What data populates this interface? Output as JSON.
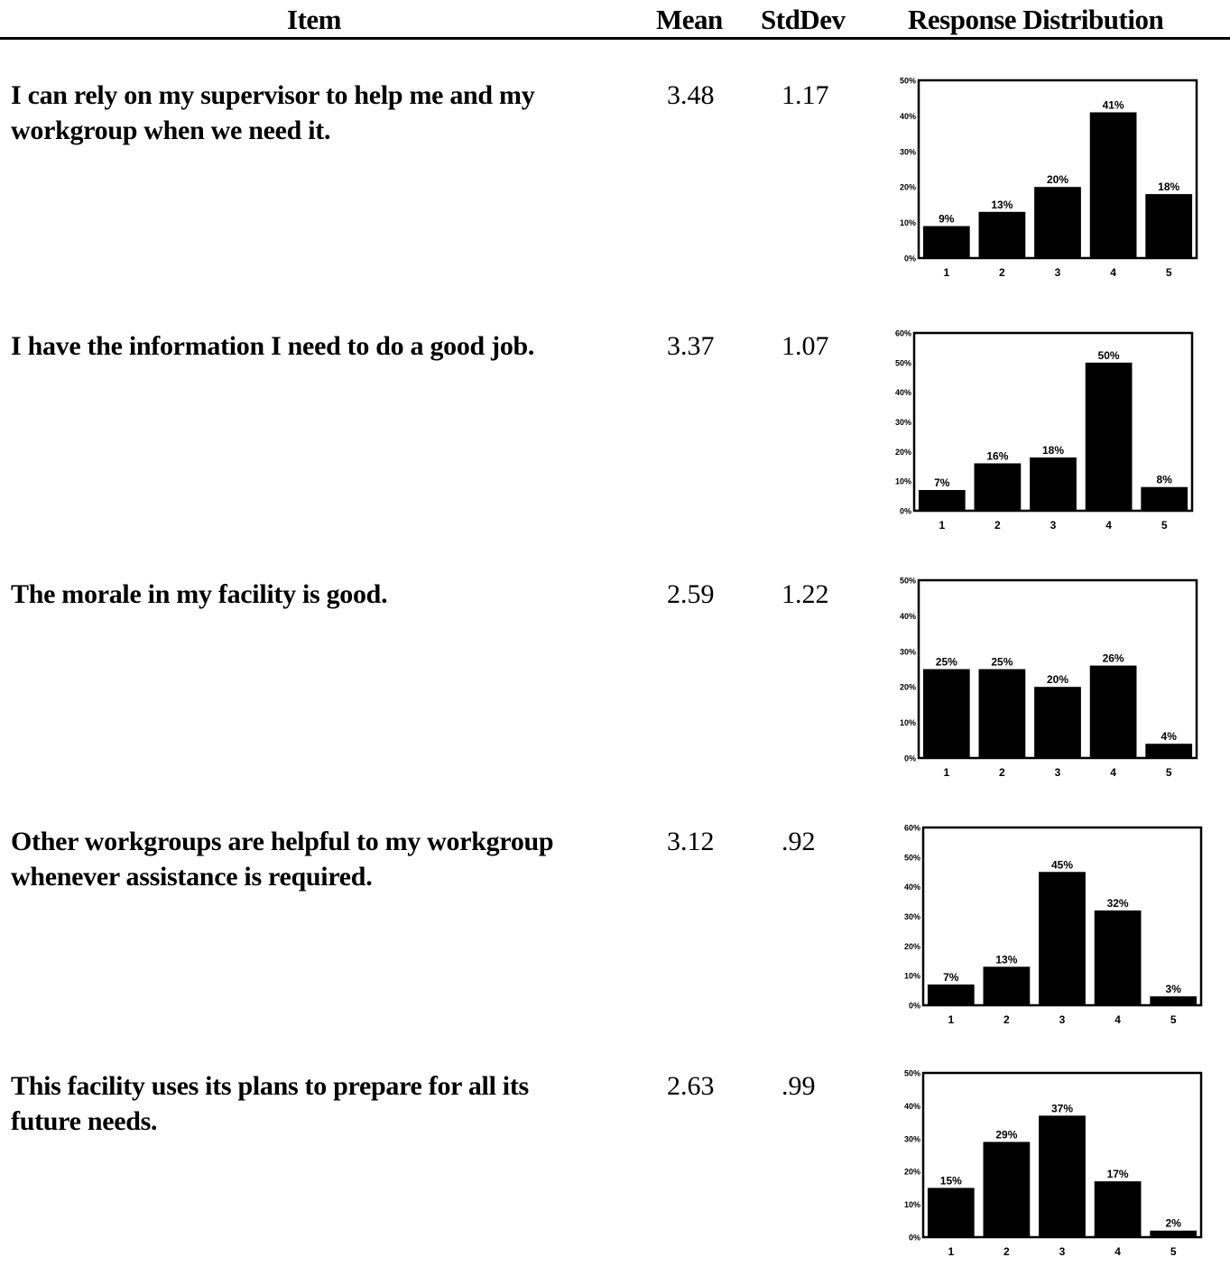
{
  "header": {
    "item": "Item",
    "mean": "Mean",
    "stddev": "StdDev",
    "distribution": "Response Distribution"
  },
  "rows": [
    {
      "question": "I can rely on my supervisor to help me and my workgroup when we need it.",
      "mean": "3.48",
      "stddev": "1.17"
    },
    {
      "question": "I have the information I need to do a good job.",
      "mean": "3.37",
      "stddev": "1.07"
    },
    {
      "question": "The morale in my facility is good.",
      "mean": "2.59",
      "stddev": "1.22"
    },
    {
      "question": "Other workgroups are helpful to my workgroup whenever assistance is required.",
      "mean": "3.12",
      "stddev": ".92"
    },
    {
      "question": "This facility uses its plans to prepare for all its future needs.",
      "mean": "2.63",
      "stddev": ".99"
    }
  ],
  "chart_data": [
    {
      "type": "bar",
      "categories": [
        "1",
        "2",
        "3",
        "4",
        "5"
      ],
      "values": [
        9,
        13,
        20,
        41,
        18
      ],
      "value_labels": [
        "9%",
        "13%",
        "20%",
        "41%",
        "18%"
      ],
      "ylim": [
        0,
        50
      ],
      "yticks": [
        "0%",
        "10%",
        "20%",
        "30%",
        "40%",
        "50%"
      ],
      "grid": false
    },
    {
      "type": "bar",
      "categories": [
        "1",
        "2",
        "3",
        "4",
        "5"
      ],
      "values": [
        7,
        16,
        18,
        50,
        8
      ],
      "value_labels": [
        "7%",
        "16%",
        "18%",
        "50%",
        "8%"
      ],
      "ylim": [
        0,
        60
      ],
      "yticks": [
        "0%",
        "10%",
        "20%",
        "30%",
        "40%",
        "50%",
        "60%"
      ],
      "grid": false
    },
    {
      "type": "bar",
      "categories": [
        "1",
        "2",
        "3",
        "4",
        "5"
      ],
      "values": [
        25,
        25,
        20,
        26,
        4
      ],
      "value_labels": [
        "25%",
        "25%",
        "20%",
        "26%",
        "4%"
      ],
      "ylim": [
        0,
        50
      ],
      "yticks": [
        "0%",
        "10%",
        "20%",
        "30%",
        "40%",
        "50%"
      ],
      "grid": false
    },
    {
      "type": "bar",
      "categories": [
        "1",
        "2",
        "3",
        "4",
        "5"
      ],
      "values": [
        7,
        13,
        45,
        32,
        3
      ],
      "value_labels": [
        "7%",
        "13%",
        "45%",
        "32%",
        "3%"
      ],
      "ylim": [
        0,
        60
      ],
      "yticks": [
        "0%",
        "10%",
        "20%",
        "30%",
        "40%",
        "50%",
        "60%"
      ],
      "grid": false
    },
    {
      "type": "bar",
      "categories": [
        "1",
        "2",
        "3",
        "4",
        "5"
      ],
      "values": [
        15,
        29,
        37,
        17,
        2
      ],
      "value_labels": [
        "15%",
        "29%",
        "37%",
        "17%",
        "2%"
      ],
      "ylim": [
        0,
        50
      ],
      "yticks": [
        "0%",
        "10%",
        "20%",
        "30%",
        "40%",
        "50%"
      ],
      "grid": false
    }
  ]
}
